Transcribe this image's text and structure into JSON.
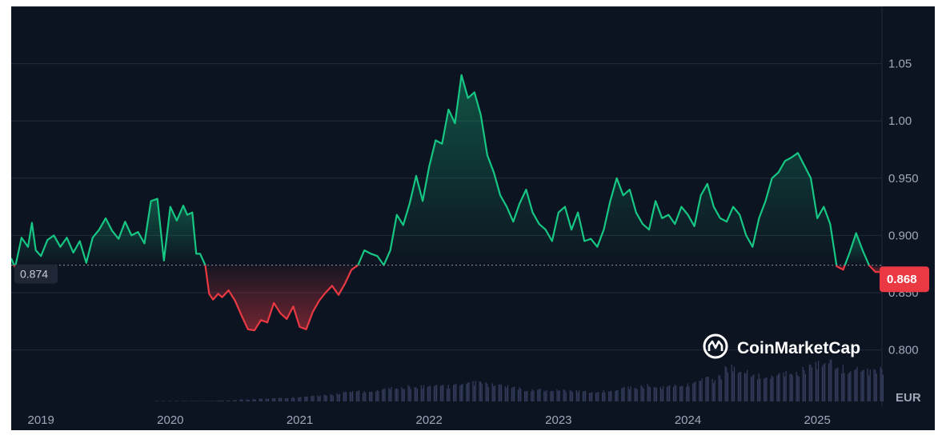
{
  "chart_data": {
    "type": "area",
    "title": "",
    "currency_label": "EUR",
    "watermark": "CoinMarketCap",
    "base_value": 0.874,
    "base_label": "0.874",
    "current_value": 0.868,
    "current_label": "0.868",
    "ylim": [
      0.755,
      1.1
    ],
    "y_ticks": [
      {
        "value": 1.05,
        "label": "1.05"
      },
      {
        "value": 1.0,
        "label": "1.00"
      },
      {
        "value": 0.95,
        "label": "0.950"
      },
      {
        "value": 0.9,
        "label": "0.900"
      },
      {
        "value": 0.85,
        "label": "0.850"
      },
      {
        "value": 0.8,
        "label": "0.800"
      }
    ],
    "xlim": [
      2018.77,
      2025.5
    ],
    "x_ticks": [
      {
        "value": 2019.0,
        "label": "2019"
      },
      {
        "value": 2020.0,
        "label": "2020"
      },
      {
        "value": 2021.0,
        "label": "2021"
      },
      {
        "value": 2022.0,
        "label": "2022"
      },
      {
        "value": 2023.0,
        "label": "2023"
      },
      {
        "value": 2024.0,
        "label": "2024"
      },
      {
        "value": 2025.0,
        "label": "2025"
      }
    ],
    "colors": {
      "up": "#16c784",
      "down": "#ea3943",
      "background": "#0d1421",
      "grid": "#222b3d",
      "volume": "#3a4466"
    },
    "series": [
      {
        "x": [
          2018.77,
          2018.8,
          2018.85,
          2018.9,
          2018.93,
          2018.96,
          2019.0,
          2019.05,
          2019.1,
          2019.15,
          2019.2,
          2019.25,
          2019.3,
          2019.35,
          2019.4,
          2019.45,
          2019.5,
          2019.55,
          2019.6,
          2019.65,
          2019.7,
          2019.75,
          2019.8,
          2019.85,
          2019.9,
          2019.95,
          2020.0,
          2020.05,
          2020.1,
          2020.13,
          2020.17,
          2020.2,
          2020.23,
          2020.27,
          2020.3,
          2020.33,
          2020.37,
          2020.4,
          2020.45,
          2020.5,
          2020.55,
          2020.6,
          2020.65,
          2020.7,
          2020.75,
          2020.8,
          2020.85,
          2020.9,
          2020.95,
          2021.0,
          2021.05,
          2021.1,
          2021.15,
          2021.2,
          2021.25,
          2021.3,
          2021.35,
          2021.4,
          2021.45,
          2021.5,
          2021.55,
          2021.6,
          2021.65,
          2021.7,
          2021.75,
          2021.8,
          2021.85,
          2021.9,
          2021.95,
          2022.0,
          2022.05,
          2022.1,
          2022.15,
          2022.2,
          2022.25,
          2022.3,
          2022.35,
          2022.4,
          2022.45,
          2022.5,
          2022.55,
          2022.6,
          2022.65,
          2022.7,
          2022.75,
          2022.8,
          2022.85,
          2022.9,
          2022.95,
          2023.0,
          2023.05,
          2023.1,
          2023.15,
          2023.2,
          2023.25,
          2023.3,
          2023.35,
          2023.4,
          2023.45,
          2023.5,
          2023.55,
          2023.6,
          2023.65,
          2023.7,
          2023.75,
          2023.8,
          2023.85,
          2023.9,
          2023.95,
          2024.0,
          2024.05,
          2024.1,
          2024.15,
          2024.2,
          2024.25,
          2024.3,
          2024.35,
          2024.4,
          2024.45,
          2024.5,
          2024.55,
          2024.6,
          2024.65,
          2024.7,
          2024.75,
          2024.8,
          2024.85,
          2024.9,
          2024.95,
          2025.0,
          2025.05,
          2025.1,
          2025.15,
          2025.2,
          2025.25,
          2025.3,
          2025.35,
          2025.4,
          2025.45,
          2025.5
        ],
        "values": [
          0.88,
          0.872,
          0.898,
          0.89,
          0.911,
          0.887,
          0.882,
          0.896,
          0.9,
          0.89,
          0.898,
          0.885,
          0.895,
          0.876,
          0.898,
          0.905,
          0.915,
          0.904,
          0.897,
          0.912,
          0.9,
          0.903,
          0.893,
          0.93,
          0.932,
          0.878,
          0.925,
          0.913,
          0.926,
          0.918,
          0.92,
          0.884,
          0.884,
          0.874,
          0.849,
          0.844,
          0.849,
          0.846,
          0.852,
          0.843,
          0.83,
          0.818,
          0.817,
          0.826,
          0.824,
          0.841,
          0.832,
          0.827,
          0.838,
          0.82,
          0.818,
          0.833,
          0.843,
          0.85,
          0.856,
          0.848,
          0.858,
          0.87,
          0.874,
          0.887,
          0.884,
          0.882,
          0.874,
          0.887,
          0.918,
          0.909,
          0.928,
          0.952,
          0.93,
          0.96,
          0.983,
          0.98,
          1.01,
          0.998,
          1.04,
          1.02,
          1.025,
          1.005,
          0.97,
          0.955,
          0.935,
          0.925,
          0.912,
          0.928,
          0.94,
          0.92,
          0.91,
          0.905,
          0.895,
          0.92,
          0.925,
          0.905,
          0.92,
          0.895,
          0.897,
          0.89,
          0.905,
          0.93,
          0.95,
          0.935,
          0.94,
          0.92,
          0.91,
          0.905,
          0.93,
          0.915,
          0.918,
          0.91,
          0.925,
          0.918,
          0.908,
          0.935,
          0.945,
          0.925,
          0.915,
          0.912,
          0.925,
          0.918,
          0.9,
          0.89,
          0.915,
          0.93,
          0.95,
          0.955,
          0.965,
          0.968,
          0.972,
          0.961,
          0.95,
          0.915,
          0.925,
          0.91,
          0.873,
          0.87,
          0.885,
          0.902,
          0.887,
          0.874,
          0.868,
          0.868
        ],
        "volume": [
          0.0,
          0.0,
          0.0,
          0.0,
          0.0,
          0.0,
          0.0,
          0.0,
          0.0,
          0.0,
          0.0,
          0.0,
          0.0,
          0.0,
          0.0,
          0.0,
          0.0,
          0.0,
          0.0,
          0.0,
          0.0,
          0.0,
          0.0,
          0.0,
          0.01,
          0.01,
          0.01,
          0.01,
          0.01,
          0.01,
          0.01,
          0.01,
          0.01,
          0.01,
          0.01,
          0.01,
          0.02,
          0.02,
          0.02,
          0.03,
          0.04,
          0.04,
          0.05,
          0.06,
          0.06,
          0.07,
          0.08,
          0.08,
          0.09,
          0.1,
          0.11,
          0.12,
          0.13,
          0.14,
          0.15,
          0.17,
          0.2,
          0.22,
          0.24,
          0.22,
          0.26,
          0.24,
          0.28,
          0.3,
          0.27,
          0.3,
          0.34,
          0.3,
          0.35,
          0.33,
          0.36,
          0.4,
          0.35,
          0.42,
          0.38,
          0.4,
          0.44,
          0.42,
          0.4,
          0.38,
          0.36,
          0.34,
          0.32,
          0.3,
          0.28,
          0.26,
          0.28,
          0.24,
          0.22,
          0.26,
          0.25,
          0.23,
          0.24,
          0.22,
          0.2,
          0.22,
          0.24,
          0.26,
          0.25,
          0.3,
          0.32,
          0.28,
          0.34,
          0.36,
          0.3,
          0.32,
          0.34,
          0.36,
          0.4,
          0.38,
          0.44,
          0.48,
          0.52,
          0.48,
          0.56,
          0.74,
          0.78,
          0.62,
          0.66,
          0.6,
          0.58,
          0.62,
          0.56,
          0.6,
          0.64,
          0.58,
          0.62,
          0.72,
          0.78,
          0.86,
          0.8,
          0.92,
          0.84,
          0.76,
          0.7,
          0.74,
          0.66,
          0.7,
          0.68,
          0.72
        ]
      }
    ]
  }
}
